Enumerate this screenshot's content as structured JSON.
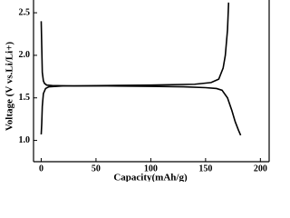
{
  "chart_data": {
    "type": "line",
    "x_label": "Capacity(mAh/g)",
    "y_label": "Voltage (V vs.Li/Li+)",
    "xlim": [
      -7,
      208
    ],
    "xticks": [
      0,
      50,
      100,
      150,
      200
    ],
    "ylim": [
      0.75,
      2.65
    ],
    "yticks": [
      {
        "value": 1,
        "label": "1.0"
      },
      1.5,
      {
        "value": 2,
        "label": "2.0"
      },
      2.5
    ],
    "series": [
      {
        "color": "#000000",
        "x": [
          0,
          0.5,
          1,
          2,
          3,
          5,
          10,
          30,
          60,
          100,
          130,
          150,
          160,
          165,
          170,
          174,
          177,
          180,
          182
        ],
        "values": [
          2.4,
          2.1,
          1.8,
          1.7,
          1.67,
          1.65,
          1.645,
          1.64,
          1.64,
          1.635,
          1.63,
          1.62,
          1.61,
          1.59,
          1.5,
          1.35,
          1.22,
          1.12,
          1.06
        ]
      },
      {
        "color": "#000000",
        "x": [
          0,
          0.5,
          1,
          2,
          4,
          7,
          20,
          60,
          100,
          140,
          155,
          162,
          166,
          168,
          170,
          171
        ],
        "values": [
          1.07,
          1.2,
          1.4,
          1.55,
          1.61,
          1.63,
          1.64,
          1.645,
          1.65,
          1.66,
          1.68,
          1.72,
          1.85,
          2.0,
          2.3,
          2.62
        ]
      }
    ]
  }
}
